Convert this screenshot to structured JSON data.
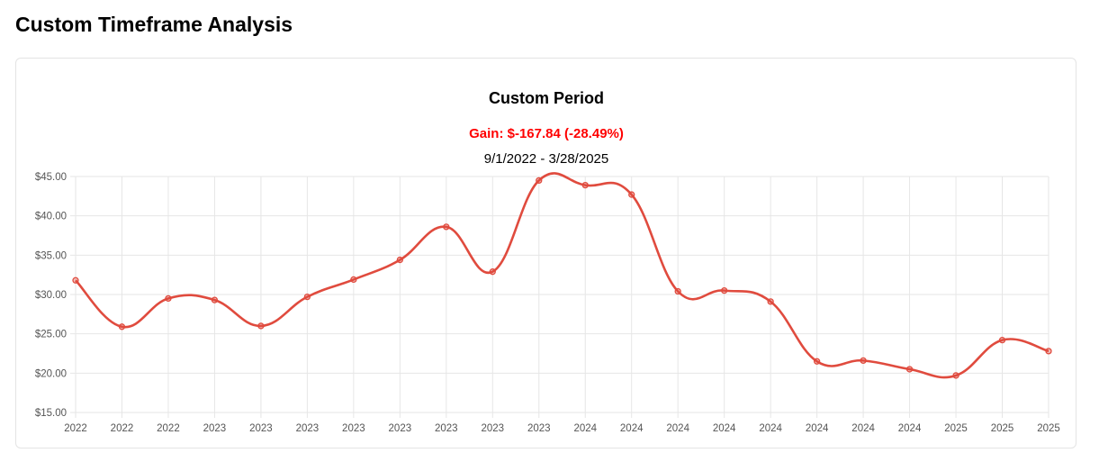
{
  "page": {
    "title": "Custom Timeframe Analysis"
  },
  "chart_data": {
    "type": "line",
    "title": "Custom Period",
    "gain_text": "Gain: $-167.84 (-28.49%)",
    "range_text": "9/1/2022 - 3/28/2025",
    "xlabel": "",
    "ylabel": "",
    "x": [
      "2022",
      "2022",
      "2022",
      "2023",
      "2023",
      "2023",
      "2023",
      "2023",
      "2023",
      "2023",
      "2023",
      "2024",
      "2024",
      "2024",
      "2024",
      "2024",
      "2024",
      "2024",
      "2024",
      "2025",
      "2025",
      "2025"
    ],
    "series": [
      {
        "values": [
          31.8,
          25.9,
          29.5,
          29.3,
          26.0,
          29.7,
          31.9,
          34.4,
          38.6,
          32.9,
          44.5,
          43.9,
          42.7,
          30.4,
          30.5,
          29.1,
          21.5,
          21.6,
          20.5,
          19.7,
          24.2,
          22.8
        ]
      }
    ],
    "ylim": [
      15,
      45
    ],
    "ytick_step": 5,
    "ytick_labels": [
      "$15.00",
      "$20.00",
      "$25.00",
      "$30.00",
      "$35.00",
      "$40.00",
      "$45.00"
    ],
    "grid": true,
    "colors": {
      "line": "#e04b3e",
      "gain": "#ff0000",
      "grid": "#e6e6e6"
    }
  }
}
